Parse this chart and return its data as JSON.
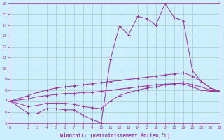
{
  "background_color": "#cceeff",
  "grid_color": "#aaccbb",
  "line_color": "#993399",
  "xlabel": "Windchill (Refroidissement éolien,°C)",
  "xlim": [
    0,
    23
  ],
  "ylim": [
    5,
    16
  ],
  "xticks": [
    0,
    2,
    3,
    4,
    5,
    6,
    7,
    8,
    9,
    10,
    11,
    12,
    13,
    14,
    15,
    16,
    17,
    18,
    19,
    20,
    21,
    22,
    23
  ],
  "yticks": [
    5,
    6,
    7,
    8,
    9,
    10,
    11,
    12,
    13,
    14,
    15,
    16
  ],
  "series": [
    {
      "x": [
        0,
        2,
        3,
        4,
        5,
        6,
        7,
        8,
        9,
        10,
        11,
        12,
        13,
        14,
        15,
        16,
        17,
        18,
        19,
        20,
        21,
        22,
        23
      ],
      "y": [
        7.0,
        5.9,
        5.9,
        6.3,
        6.3,
        6.2,
        6.2,
        5.7,
        5.3,
        5.0,
        10.8,
        13.9,
        13.1,
        14.8,
        14.6,
        14.0,
        16.0,
        14.7,
        14.4,
        9.8,
        8.8,
        8.2,
        7.9
      ]
    },
    {
      "x": [
        0,
        2,
        3,
        4,
        5,
        6,
        7,
        8,
        9,
        10,
        11,
        12,
        13,
        14,
        15,
        16,
        17,
        18,
        19,
        20,
        21,
        22,
        23
      ],
      "y": [
        7.0,
        7.5,
        7.8,
        8.0,
        8.2,
        8.3,
        8.4,
        8.5,
        8.6,
        8.7,
        8.8,
        8.9,
        9.0,
        9.1,
        9.2,
        9.3,
        9.4,
        9.5,
        9.6,
        9.3,
        8.8,
        8.2,
        7.9
      ]
    },
    {
      "x": [
        0,
        2,
        3,
        4,
        5,
        6,
        7,
        8,
        9,
        10,
        11,
        12,
        13,
        14,
        15,
        16,
        17,
        18,
        19,
        20,
        21,
        22,
        23
      ],
      "y": [
        7.0,
        7.2,
        7.4,
        7.5,
        7.6,
        7.7,
        7.7,
        7.8,
        7.8,
        7.9,
        8.0,
        8.1,
        8.2,
        8.3,
        8.4,
        8.5,
        8.55,
        8.6,
        8.7,
        8.5,
        8.3,
        8.0,
        7.9
      ]
    },
    {
      "x": [
        0,
        2,
        3,
        4,
        5,
        6,
        7,
        8,
        9,
        10,
        11,
        12,
        13,
        14,
        15,
        16,
        17,
        18,
        19,
        20,
        21,
        22,
        23
      ],
      "y": [
        7.0,
        6.5,
        6.6,
        6.8,
        6.8,
        6.8,
        6.7,
        6.5,
        6.4,
        6.3,
        7.0,
        7.5,
        7.8,
        8.0,
        8.2,
        8.3,
        8.5,
        8.6,
        8.6,
        8.3,
        8.0,
        7.9,
        7.9
      ]
    }
  ]
}
